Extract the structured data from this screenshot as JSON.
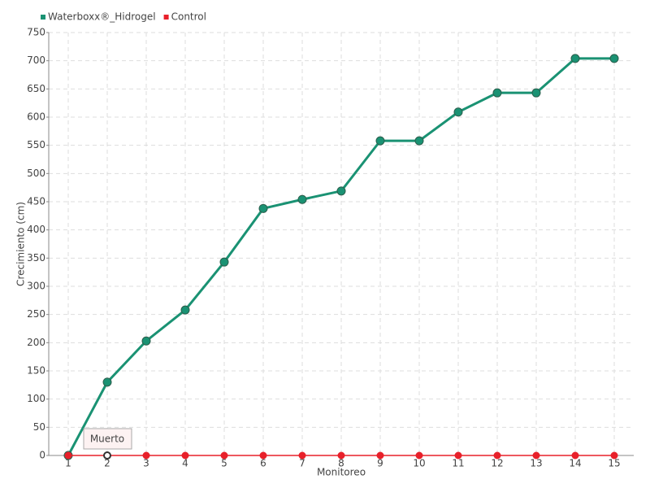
{
  "chart_data": {
    "type": "line",
    "categories": [
      "1",
      "2",
      "3",
      "4",
      "5",
      "6",
      "7",
      "8",
      "9",
      "10",
      "11",
      "12",
      "13",
      "14",
      "15"
    ],
    "series": [
      {
        "name": "Waterboxx®_Hidrogel",
        "color": "#1a9273",
        "values": [
          0,
          130,
          203,
          258,
          343,
          438,
          454,
          469,
          558,
          558,
          609,
          643,
          643,
          704,
          704
        ]
      },
      {
        "name": "Control",
        "color": "#e8202a",
        "values": [
          0,
          0,
          0,
          0,
          0,
          0,
          0,
          0,
          0,
          0,
          0,
          0,
          0,
          0,
          0
        ]
      }
    ],
    "ylim": [
      0,
      750
    ],
    "yticks": [
      0,
      50,
      100,
      150,
      200,
      250,
      300,
      350,
      400,
      450,
      500,
      550,
      600,
      650,
      700,
      750
    ],
    "ylabel": "Crecimiento (cm)",
    "xlabel": "Monitoreo",
    "grid": true,
    "legend": "top-left",
    "annotation": {
      "text": "Muerto",
      "series": 1,
      "index": 1
    }
  }
}
